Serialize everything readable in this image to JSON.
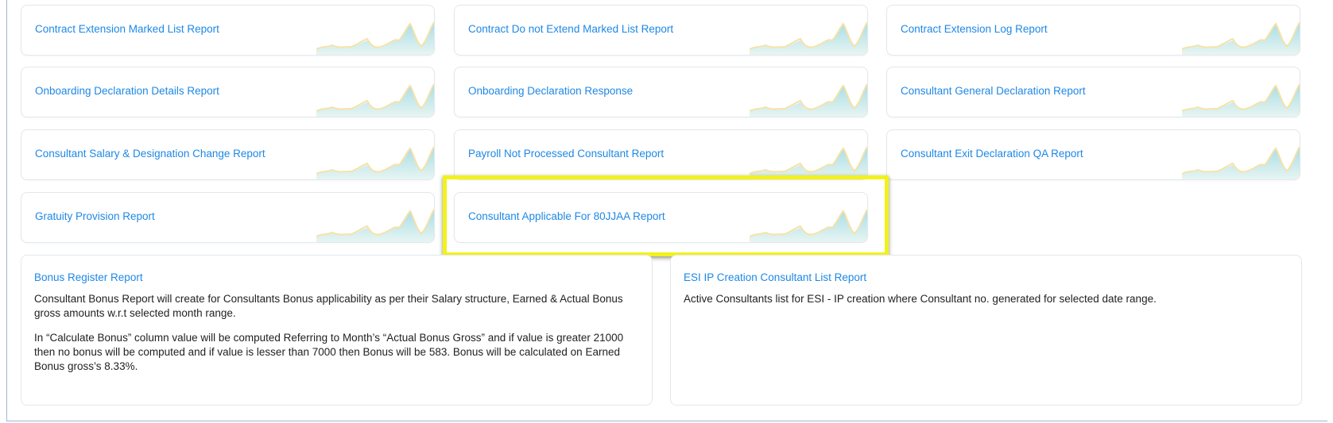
{
  "report_cards": [
    {
      "title": "Contract Extension Marked List Report"
    },
    {
      "title": "Contract Do not Extend Marked List Report"
    },
    {
      "title": "Contract Extension Log Report"
    },
    {
      "title": "Onboarding Declaration Details Report"
    },
    {
      "title": "Onboarding Declaration Response"
    },
    {
      "title": "Consultant General Declaration Report"
    },
    {
      "title": "Consultant Salary & Designation Change Report"
    },
    {
      "title": "Payroll Not Processed Consultant Report"
    },
    {
      "title": "Consultant Exit Declaration QA Report"
    },
    {
      "title": "Gratuity Provision Report"
    },
    {
      "title": "Consultant Applicable For 80JJAA Report"
    }
  ],
  "panels": [
    {
      "title": "Bonus Register Report",
      "paragraphs": [
        "Consultant Bonus Report will create for Consultants Bonus applicability as per their Salary structure, Earned & Actual Bonus gross amounts w.r.t selected month range.",
        "In “Calculate Bonus” column value will be computed Referring to Month’s “Actual Bonus Gross” and if value is greater 21000 then no bonus will be computed and if value is lesser than 7000 then Bonus will be 583. Bonus will be calculated on Earned Bonus gross’s 8.33%."
      ]
    },
    {
      "title": "ESI IP Creation Consultant List Report",
      "paragraphs": [
        "Active Consultants list for ESI - IP creation where Consultant no. generated for selected date range."
      ]
    }
  ],
  "colors": {
    "link": "#1e88e5",
    "highlight": "#f2f21a",
    "spark_fill": "#bfe6ec",
    "spark_line": "#f5e2a8"
  },
  "icons": {
    "card_decoration": "sparkline-icon"
  }
}
